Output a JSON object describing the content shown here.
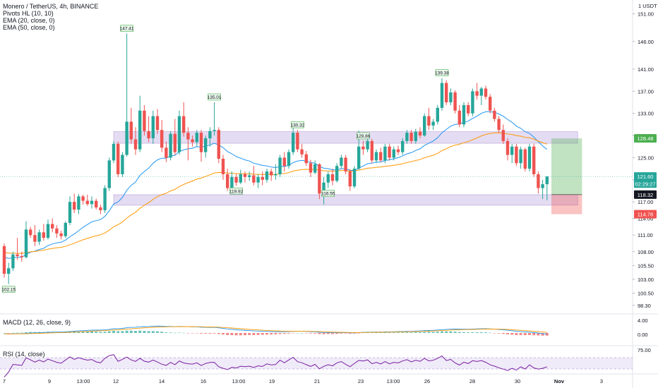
{
  "legend": {
    "title": "Monero / TetherUS, 4h, BINANCE",
    "ind1": "Pivots HL (10, 10)",
    "ind2": "EMA (20, close, 0)",
    "ind3": "EMA (50, close, 0)"
  },
  "macd_label": "MACD (12, 26, close, 9)",
  "rsi_label": "RSI (14, close)",
  "colors": {
    "up": "#26a69a",
    "down": "#ef5350",
    "ema20": "#2196f3",
    "ema50": "#ff9800",
    "zone": "rgba(149,117,205,0.25)",
    "target": "rgba(76,175,80,0.35)",
    "stop": "rgba(239,83,80,0.35)",
    "rsi": "#7b1fa2"
  },
  "chart_data": {
    "type": "candlestick",
    "currency_label": "1 USDT",
    "y_ticks": [
      "151.00",
      "146.00",
      "141.00",
      "137.00",
      "133.00",
      "129.00",
      "125.00",
      "121.00",
      "117.00",
      "114.00",
      "111.00",
      "108.00",
      "105.50",
      "103.00",
      "100.50",
      "98.30"
    ],
    "x_ticks": [
      "7",
      "9",
      "13:00",
      "12",
      "14",
      "16",
      "13:00",
      "19",
      "21",
      "23",
      "13:00",
      "26",
      "28",
      "30",
      "Nov",
      "3"
    ],
    "macd_ticks": [
      "4.00",
      "0.00"
    ],
    "rsi_ticks": [
      "75.00"
    ],
    "price_badges": [
      {
        "label": "128.48",
        "value": 128.48,
        "color": "#4caf50"
      },
      {
        "label": "121.60",
        "value": 121.6,
        "color": "#26a69a"
      },
      {
        "label": "02:29:27",
        "value": 120.3,
        "color": "#26a69a"
      },
      {
        "label": "118.32",
        "value": 118.32,
        "color": "#131722"
      },
      {
        "label": "114.78",
        "value": 114.78,
        "color": "#ef5350"
      }
    ],
    "pivots": [
      {
        "label": "102.15",
        "index": 1,
        "type": "low"
      },
      {
        "label": "147.41",
        "index": 28,
        "type": "high"
      },
      {
        "label": "135.01",
        "index": 48,
        "type": "high"
      },
      {
        "label": "119.92",
        "index": 53,
        "type": "low"
      },
      {
        "label": "130.32",
        "index": 67,
        "type": "high"
      },
      {
        "label": "116.55",
        "index": 74,
        "type": "low"
      },
      {
        "label": "129.86",
        "index": 82,
        "type": "high"
      },
      {
        "label": "139.38",
        "index": 100,
        "type": "high"
      }
    ],
    "zones": [
      {
        "top": 129.7,
        "bottom": 127.6
      },
      {
        "top": 118.3,
        "bottom": 116.4
      }
    ],
    "position": {
      "entry": 118.32,
      "target": 128.48,
      "stop": 114.78,
      "start_index": 125,
      "end_index": 132
    },
    "candles": [
      [
        109.0,
        109.5,
        103.3,
        104.0
      ],
      [
        104.0,
        106.0,
        102.15,
        105.0
      ],
      [
        105.0,
        108.0,
        104.5,
        107.5
      ],
      [
        107.5,
        110.5,
        106.5,
        107.2
      ],
      [
        107.2,
        108.0,
        106.2,
        107.0
      ],
      [
        107.0,
        113.5,
        106.8,
        112.0
      ],
      [
        112.0,
        112.5,
        110.5,
        111.0
      ],
      [
        111.0,
        112.8,
        109.0,
        109.8
      ],
      [
        109.8,
        112.0,
        109.2,
        111.5
      ],
      [
        111.5,
        113.0,
        110.0,
        110.5
      ],
      [
        110.5,
        113.8,
        110.2,
        113.0
      ],
      [
        113.0,
        114.0,
        111.5,
        112.2
      ],
      [
        112.2,
        112.8,
        110.5,
        111.3
      ],
      [
        111.3,
        111.8,
        110.2,
        110.8
      ],
      [
        110.8,
        113.5,
        110.5,
        113.2
      ],
      [
        113.2,
        118.0,
        112.8,
        117.0
      ],
      [
        117.0,
        118.5,
        115.0,
        115.6
      ],
      [
        115.6,
        118.4,
        114.8,
        118.0
      ],
      [
        118.0,
        118.3,
        116.5,
        117.2
      ],
      [
        117.2,
        118.3,
        116.3,
        116.6
      ],
      [
        116.6,
        118.0,
        115.8,
        117.2
      ],
      [
        117.2,
        117.6,
        115.6,
        116.0
      ],
      [
        116.0,
        116.5,
        114.8,
        115.5
      ],
      [
        115.5,
        120.0,
        115.0,
        119.5
      ],
      [
        119.5,
        125.0,
        119.0,
        124.5
      ],
      [
        124.5,
        128.0,
        124.0,
        127.5
      ],
      [
        127.5,
        127.9,
        121.5,
        122.0
      ],
      [
        122.0,
        126.0,
        121.5,
        125.5
      ],
      [
        125.5,
        147.41,
        125.2,
        131.5
      ],
      [
        131.5,
        134.0,
        127.5,
        128.3
      ],
      [
        128.3,
        130.5,
        125.5,
        126.5
      ],
      [
        126.5,
        136.2,
        126.0,
        133.5
      ],
      [
        133.5,
        134.5,
        129.0,
        129.8
      ],
      [
        129.8,
        132.5,
        127.8,
        128.5
      ],
      [
        128.5,
        133.5,
        127.5,
        132.5
      ],
      [
        132.5,
        133.8,
        129.3,
        130.0
      ],
      [
        130.0,
        131.8,
        126.0,
        126.8
      ],
      [
        126.8,
        127.9,
        124.2,
        125.0
      ],
      [
        125.0,
        129.8,
        124.5,
        129.3
      ],
      [
        129.3,
        132.0,
        125.5,
        126.0
      ],
      [
        126.0,
        133.5,
        125.5,
        132.5
      ],
      [
        132.5,
        135.0,
        128.8,
        129.5
      ],
      [
        129.5,
        130.5,
        124.5,
        128.3
      ],
      [
        128.3,
        129.0,
        127.0,
        127.8
      ],
      [
        127.8,
        130.0,
        127.0,
        129.5
      ],
      [
        129.5,
        130.0,
        124.3,
        126.0
      ],
      [
        126.0,
        129.0,
        125.0,
        128.5
      ],
      [
        128.5,
        130.5,
        127.0,
        129.8
      ],
      [
        129.8,
        135.01,
        129.0,
        130.0
      ],
      [
        130.0,
        130.5,
        124.0,
        124.8
      ],
      [
        124.8,
        125.5,
        121.0,
        122.0
      ],
      [
        122.0,
        123.0,
        119.0,
        119.5
      ],
      [
        119.5,
        122.5,
        119.2,
        121.5
      ],
      [
        121.5,
        122.0,
        119.92,
        120.5
      ],
      [
        120.5,
        122.8,
        120.2,
        122.0
      ],
      [
        122.0,
        122.5,
        120.5,
        121.5
      ],
      [
        121.5,
        122.5,
        120.8,
        121.8
      ],
      [
        121.8,
        123.5,
        120.0,
        120.5
      ],
      [
        120.5,
        122.0,
        119.5,
        121.5
      ],
      [
        121.5,
        122.5,
        120.0,
        121.0
      ],
      [
        121.0,
        123.0,
        120.5,
        122.5
      ],
      [
        122.5,
        123.0,
        120.8,
        121.8
      ],
      [
        121.8,
        123.8,
        121.0,
        122.0
      ],
      [
        122.0,
        125.5,
        121.5,
        125.0
      ],
      [
        125.0,
        126.0,
        122.5,
        123.5
      ],
      [
        123.5,
        126.5,
        123.0,
        126.0
      ],
      [
        126.0,
        130.32,
        125.5,
        129.5
      ],
      [
        129.5,
        130.0,
        126.0,
        126.5
      ],
      [
        126.5,
        127.5,
        125.0,
        125.6
      ],
      [
        125.6,
        126.2,
        123.5,
        124.0
      ],
      [
        124.0,
        124.6,
        121.5,
        122.3
      ],
      [
        122.3,
        124.5,
        122.0,
        123.8
      ],
      [
        123.8,
        124.0,
        117.5,
        118.5
      ],
      [
        118.5,
        121.5,
        116.55,
        120.5
      ],
      [
        120.5,
        122.5,
        119.5,
        122.0
      ],
      [
        122.0,
        123.0,
        120.0,
        120.8
      ],
      [
        120.8,
        124.0,
        120.5,
        123.5
      ],
      [
        123.5,
        125.5,
        123.0,
        125.0
      ],
      [
        125.0,
        125.5,
        122.0,
        122.5
      ],
      [
        122.5,
        122.9,
        119.0,
        119.8
      ],
      [
        119.8,
        123.5,
        119.5,
        123.0
      ],
      [
        123.0,
        129.86,
        122.8,
        127.0
      ],
      [
        127.0,
        128.0,
        125.5,
        126.5
      ],
      [
        126.5,
        128.5,
        126.0,
        128.0
      ],
      [
        128.0,
        128.4,
        124.0,
        124.5
      ],
      [
        124.5,
        126.5,
        124.0,
        126.0
      ],
      [
        126.0,
        126.8,
        124.2,
        124.5
      ],
      [
        124.5,
        127.5,
        124.0,
        127.0
      ],
      [
        127.0,
        127.5,
        124.5,
        125.0
      ],
      [
        125.0,
        127.0,
        124.5,
        126.5
      ],
      [
        126.5,
        127.2,
        125.5,
        126.0
      ],
      [
        126.0,
        128.5,
        125.5,
        128.0
      ],
      [
        128.0,
        130.0,
        127.5,
        129.5
      ],
      [
        129.5,
        130.0,
        127.5,
        128.0
      ],
      [
        128.0,
        130.2,
        127.5,
        129.7
      ],
      [
        129.7,
        130.5,
        128.5,
        129.0
      ],
      [
        129.0,
        133.0,
        128.8,
        132.5
      ],
      [
        132.5,
        134.0,
        130.0,
        130.8
      ],
      [
        130.8,
        132.0,
        130.0,
        131.5
      ],
      [
        131.5,
        134.5,
        131.0,
        134.0
      ],
      [
        134.0,
        139.38,
        133.5,
        138.5
      ],
      [
        138.5,
        139.0,
        134.5,
        135.0
      ],
      [
        135.0,
        137.5,
        134.5,
        136.8
      ],
      [
        136.8,
        137.2,
        133.0,
        133.5
      ],
      [
        133.5,
        134.5,
        130.5,
        131.0
      ],
      [
        131.0,
        135.0,
        130.5,
        134.5
      ],
      [
        134.5,
        135.0,
        132.5,
        133.0
      ],
      [
        133.0,
        137.5,
        132.5,
        137.0
      ],
      [
        137.0,
        138.5,
        135.5,
        136.2
      ],
      [
        136.2,
        137.8,
        134.5,
        137.5
      ],
      [
        137.5,
        138.0,
        135.5,
        136.0
      ],
      [
        136.0,
        136.5,
        133.0,
        133.5
      ],
      [
        133.5,
        134.0,
        131.5,
        132.0
      ],
      [
        132.0,
        132.5,
        129.5,
        130.0
      ],
      [
        130.0,
        131.0,
        127.5,
        128.0
      ],
      [
        128.0,
        128.5,
        124.5,
        125.5
      ],
      [
        125.5,
        127.5,
        124.0,
        127.0
      ],
      [
        127.0,
        127.5,
        123.5,
        124.0
      ],
      [
        124.0,
        127.0,
        123.0,
        126.5
      ],
      [
        126.5,
        126.8,
        122.5,
        123.0
      ],
      [
        123.0,
        127.5,
        122.5,
        127.0
      ],
      [
        127.0,
        127.5,
        121.5,
        122.0
      ],
      [
        122.0,
        122.5,
        118.5,
        119.5
      ],
      [
        119.5,
        121.0,
        117.5,
        120.2
      ],
      [
        120.2,
        121.6,
        117.3,
        121.6
      ]
    ],
    "ema20": [
      107.0,
      106.8,
      106.9,
      107.0,
      107.0,
      107.5,
      107.9,
      108.1,
      108.4,
      108.6,
      109.1,
      109.4,
      109.6,
      109.7,
      110.1,
      110.7,
      111.2,
      111.8,
      112.4,
      112.9,
      113.4,
      113.6,
      113.8,
      114.4,
      115.4,
      116.6,
      117.0,
      117.8,
      119.1,
      120.0,
      120.6,
      121.8,
      122.5,
      123.1,
      124.0,
      124.6,
      124.9,
      124.9,
      125.3,
      125.4,
      126.1,
      126.4,
      126.6,
      126.7,
      127.0,
      126.9,
      127.1,
      127.3,
      127.6,
      127.3,
      126.8,
      126.1,
      125.7,
      125.2,
      124.9,
      124.6,
      124.4,
      124.0,
      123.8,
      123.6,
      123.5,
      123.3,
      123.2,
      123.4,
      123.4,
      123.6,
      124.1,
      124.4,
      124.5,
      124.4,
      124.1,
      124.0,
      123.4,
      123.1,
      123.0,
      122.8,
      122.8,
      123.0,
      123.0,
      122.7,
      122.7,
      123.1,
      123.5,
      123.9,
      124.0,
      124.2,
      124.2,
      124.5,
      124.6,
      124.8,
      125.0,
      125.3,
      125.7,
      125.9,
      126.3,
      126.6,
      127.2,
      127.6,
      128.0,
      128.6,
      129.5,
      130.1,
      130.7,
      131.0,
      131.1,
      131.4,
      131.6,
      132.1,
      132.5,
      133.0,
      133.3,
      133.3,
      133.2,
      132.9,
      132.5,
      131.9,
      131.4,
      130.7,
      130.3,
      129.7,
      129.4,
      128.7,
      127.9,
      127.1,
      126.5
    ]
  },
  "ranges": {
    "price": [
      97.0,
      153.5
    ]
  }
}
